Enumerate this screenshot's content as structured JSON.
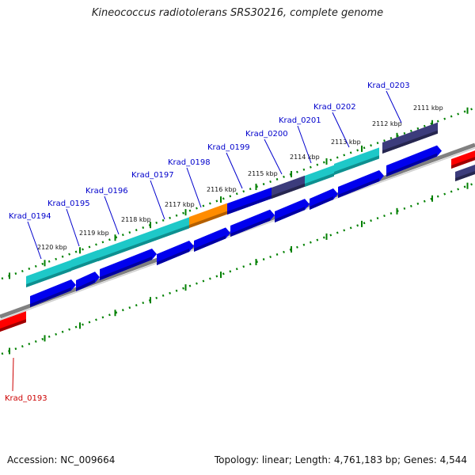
{
  "title": "Kineococcus radiotolerans SRS30216, complete genome",
  "footer": {
    "accession": "Accession: NC_009664",
    "summary": "Topology: linear; Length: 4,761,183 bp; Genes: 4,544"
  },
  "colors": {
    "cds": "#0000ee",
    "gene": "#1ec8c8",
    "gene_dark": "#3c3c7c",
    "orange": "#ff8c00",
    "other": "#ff0000",
    "backbone": "#808080",
    "ticks": "#008000",
    "label_blue": "#0000cc",
    "label_red": "#cc0000"
  },
  "ticks": [
    {
      "label": "2111 kbp"
    },
    {
      "label": "2112 kbp"
    },
    {
      "label": "2113 kbp"
    },
    {
      "label": "2114 kbp"
    },
    {
      "label": "2115 kbp"
    },
    {
      "label": "2116 kbp"
    },
    {
      "label": "2117 kbp"
    },
    {
      "label": "2118 kbp"
    },
    {
      "label": "2119 kbp"
    },
    {
      "label": "2120 kbp"
    }
  ],
  "genes": [
    {
      "name": "Krad_0203",
      "type": "gene_dark"
    },
    {
      "name": "Krad_0202",
      "type": "gene"
    },
    {
      "name": "Krad_0201",
      "type": "gene"
    },
    {
      "name": "Krad_0200",
      "type": "gene_dark"
    },
    {
      "name": "Krad_0199",
      "type": "cds_top"
    },
    {
      "name": "Krad_0198",
      "type": "orange"
    },
    {
      "name": "Krad_0197",
      "type": "gene"
    },
    {
      "name": "Krad_0196",
      "type": "gene"
    },
    {
      "name": "Krad_0195",
      "type": "gene"
    },
    {
      "name": "Krad_0194",
      "type": "gene"
    },
    {
      "name": "Krad_0193",
      "type": "other"
    }
  ]
}
